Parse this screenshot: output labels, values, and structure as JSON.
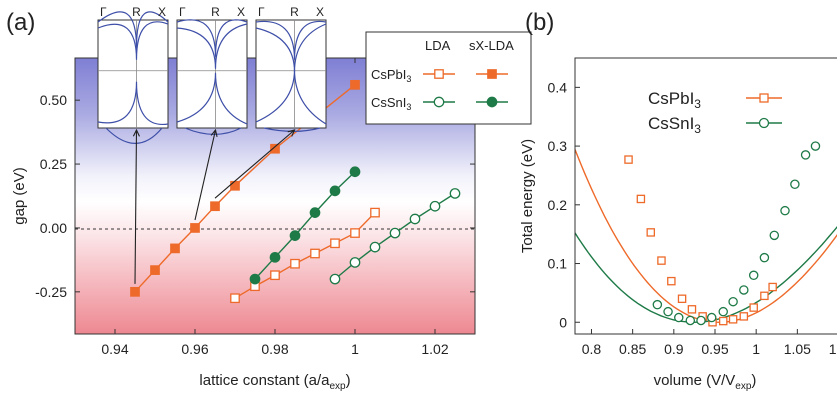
{
  "chart_data": [
    {
      "panel_label": "(a)",
      "type": "line",
      "xlabel": "lattice constant (a/a",
      "xlabel_sub": "exp",
      "xlabel_close": ")",
      "ylabel": "gap (eV)",
      "xlim": [
        0.93,
        1.03
      ],
      "ylim": [
        -0.415,
        0.665
      ],
      "xticks": [
        "0.94",
        "0.96",
        "0.98",
        "1",
        "1.02"
      ],
      "xtick_values": [
        0.94,
        0.96,
        0.98,
        1.0,
        1.02
      ],
      "yticks": [
        "-0.25",
        "0.00",
        "0.25",
        "0.50"
      ],
      "ytick_values": [
        -0.25,
        0.0,
        0.25,
        0.5
      ],
      "zero_line": "dashed",
      "background": "gradient: blue above 0, red below 0",
      "legend": {
        "placement": "top-right",
        "col_headers": [
          "LDA",
          "sX-LDA"
        ],
        "rows": [
          {
            "label": "CsPbI",
            "sub": "3"
          },
          {
            "label": "CsSnI",
            "sub": "3"
          }
        ]
      },
      "series": [
        {
          "material": "CsPbI3",
          "method": "LDA",
          "marker": "open-square",
          "color": "#ee6a2a",
          "x": [
            0.97,
            0.975,
            0.98,
            0.985,
            0.99,
            0.995,
            1.0,
            1.005
          ],
          "y": [
            -0.275,
            -0.228,
            -0.185,
            -0.14,
            -0.1,
            -0.06,
            -0.02,
            0.06
          ]
        },
        {
          "material": "CsPbI3",
          "method": "sX-LDA",
          "marker": "filled-square",
          "color": "#ee6a2a",
          "x": [
            0.945,
            0.95,
            0.955,
            0.96,
            0.965,
            0.97,
            0.98,
            1.0
          ],
          "y": [
            -0.25,
            -0.165,
            -0.08,
            0.0,
            0.085,
            0.165,
            0.31,
            0.56
          ]
        },
        {
          "material": "CsSnI3",
          "method": "LDA",
          "marker": "open-circle",
          "color": "#1e7a47",
          "x": [
            0.995,
            1.0,
            1.005,
            1.01,
            1.015,
            1.02,
            1.025
          ],
          "y": [
            -0.2,
            -0.135,
            -0.075,
            -0.02,
            0.035,
            0.085,
            0.135
          ]
        },
        {
          "material": "CsSnI3",
          "method": "sX-LDA",
          "marker": "filled-circle",
          "color": "#1e7a47",
          "x": [
            0.975,
            0.98,
            0.985,
            0.99,
            0.995,
            1.0
          ],
          "y": [
            -0.2,
            -0.115,
            -0.03,
            0.06,
            0.145,
            0.22
          ]
        }
      ],
      "insets": [
        {
          "k_labels": [
            "Γ",
            "R",
            "X"
          ],
          "points_to": {
            "x": 0.945,
            "y": -0.25
          }
        },
        {
          "k_labels": [
            "Γ",
            "R",
            "X"
          ],
          "points_to": {
            "x": 0.96,
            "y": 0.0
          }
        },
        {
          "k_labels": [
            "Γ",
            "R",
            "X"
          ],
          "points_to": {
            "x": 0.965,
            "y": 0.085
          }
        }
      ]
    },
    {
      "panel_label": "(b)",
      "type": "line",
      "xlabel": "volume (V/V",
      "xlabel_sub": "exp",
      "xlabel_close": ")",
      "ylabel": "Total energy (eV)",
      "xlim": [
        0.78,
        1.12
      ],
      "ylim": [
        -0.02,
        0.45
      ],
      "xticks": [
        "0.8",
        "0.85",
        "0.9",
        "0.95",
        "1",
        "1.05",
        "1.1"
      ],
      "xtick_values": [
        0.8,
        0.85,
        0.9,
        0.95,
        1.0,
        1.05,
        1.1
      ],
      "yticks": [
        "0",
        "0.1",
        "0.2",
        "0.3",
        "0.4"
      ],
      "ytick_values": [
        0,
        0.1,
        0.2,
        0.3,
        0.4
      ],
      "legend": {
        "placement": "top-center",
        "rows": [
          {
            "label": "CsPbI",
            "sub": "3"
          },
          {
            "label": "CsSnI",
            "sub": "3"
          }
        ]
      },
      "series": [
        {
          "material": "CsPbI3",
          "marker": "open-square",
          "color": "#ee6a2a",
          "x": [
            0.845,
            0.86,
            0.872,
            0.885,
            0.897,
            0.91,
            0.922,
            0.935,
            0.947,
            0.96,
            0.972,
            0.985,
            0.997,
            1.01,
            1.02
          ],
          "y": [
            0.277,
            0.21,
            0.153,
            0.105,
            0.07,
            0.04,
            0.022,
            0.01,
            0.0,
            0.002,
            0.005,
            0.01,
            0.025,
            0.045,
            0.06
          ]
        },
        {
          "material": "CsSnI3",
          "marker": "open-circle",
          "color": "#1e7a47",
          "x": [
            0.88,
            0.893,
            0.906,
            0.92,
            0.933,
            0.946,
            0.96,
            0.972,
            0.985,
            0.997,
            1.01,
            1.022,
            1.035,
            1.047,
            1.06,
            1.072
          ],
          "y": [
            0.03,
            0.018,
            0.008,
            0.003,
            0.003,
            0.008,
            0.018,
            0.035,
            0.055,
            0.08,
            0.11,
            0.148,
            0.19,
            0.235,
            0.285,
            0.3
          ]
        }
      ]
    }
  ]
}
